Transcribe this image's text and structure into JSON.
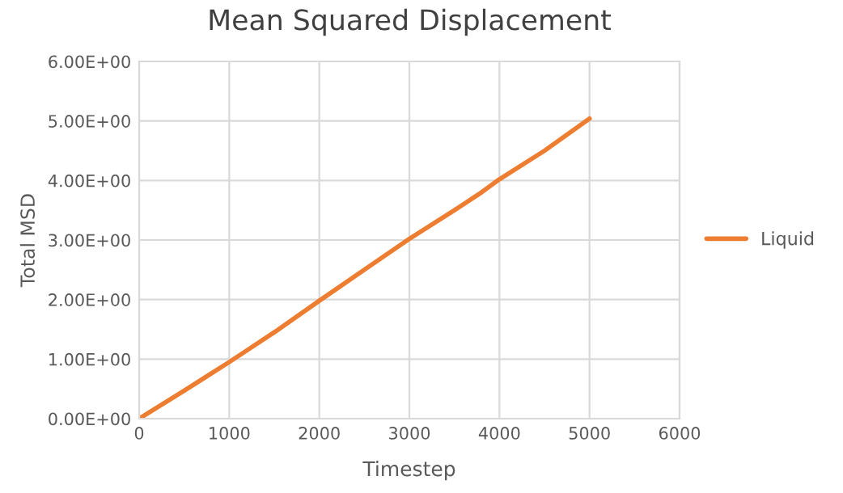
{
  "chart_data": {
    "type": "line",
    "title": "Mean Squared Displacement",
    "xlabel": "Timestep",
    "ylabel": "Total MSD",
    "x": [
      0,
      500,
      1000,
      1200,
      1500,
      2000,
      2500,
      3000,
      3500,
      3800,
      4000,
      4500,
      5000
    ],
    "series": [
      {
        "name": "Liquid",
        "color": "#ed7d31",
        "values": [
          0,
          0.47,
          0.95,
          1.15,
          1.45,
          1.98,
          2.5,
          3.02,
          3.5,
          3.8,
          4.02,
          4.5,
          5.04
        ]
      }
    ],
    "xlim": [
      0,
      6000
    ],
    "xticks": [
      0,
      1000,
      2000,
      3000,
      4000,
      5000,
      6000
    ],
    "ylim": [
      0,
      6
    ],
    "yticks": [
      {
        "value": 0,
        "label": "0.00E+00"
      },
      {
        "value": 1,
        "label": "1.00E+00"
      },
      {
        "value": 2,
        "label": "2.00E+00"
      },
      {
        "value": 3,
        "label": "3.00E+00"
      },
      {
        "value": 4,
        "label": "4.00E+00"
      },
      {
        "value": 5,
        "label": "5.00E+00"
      },
      {
        "value": 6,
        "label": "6.00E+00"
      }
    ],
    "grid": true,
    "legend": "right",
    "marker": "none",
    "line_style": "solid"
  }
}
